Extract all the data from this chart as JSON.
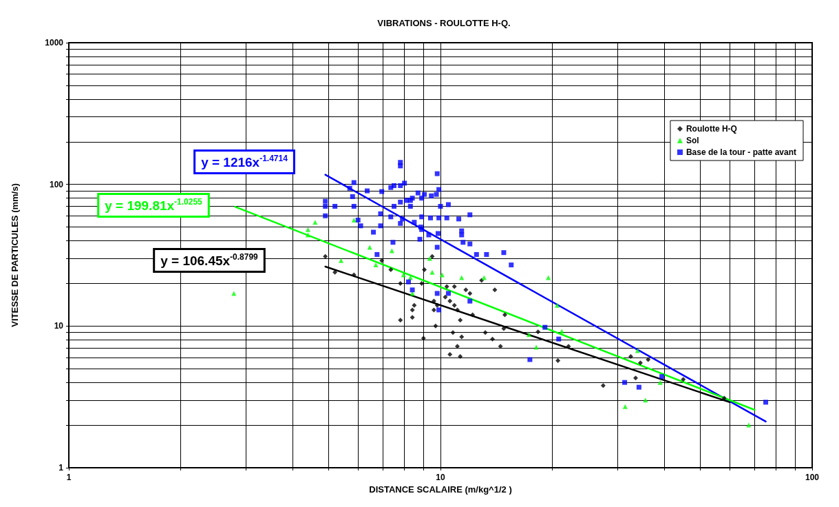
{
  "chart_data": {
    "type": "scatter",
    "title": "VIBRATIONS - ROULOTTE H-Q.",
    "xlabel": "DISTANCE SCALAIRE (m/kg^1/2 )",
    "ylabel": "VITESSE DE PARTICULES (mm/s)",
    "log": "xy",
    "grid": true,
    "legend": "top right",
    "xlim": [
      1,
      100
    ],
    "ylim": [
      1,
      1000
    ],
    "xticks": [
      1,
      {
        "value": 2,
        "label": null
      },
      {
        "value": 3,
        "label": null
      },
      {
        "value": 4,
        "label": null
      },
      {
        "value": 5,
        "label": null
      },
      {
        "value": 6,
        "label": null
      },
      {
        "value": 7,
        "label": null
      },
      {
        "value": 8,
        "label": null
      },
      {
        "value": 9,
        "label": null
      },
      10,
      {
        "value": 20,
        "label": null
      },
      {
        "value": 30,
        "label": null
      },
      {
        "value": 40,
        "label": null
      },
      {
        "value": 50,
        "label": null
      },
      {
        "value": 60,
        "label": null
      },
      {
        "value": 70,
        "label": null
      },
      {
        "value": 80,
        "label": null
      },
      {
        "value": 90,
        "label": null
      },
      100
    ],
    "yticks": [
      1,
      {
        "value": 2,
        "label": null
      },
      {
        "value": 3,
        "label": null
      },
      {
        "value": 4,
        "label": null
      },
      {
        "value": 5,
        "label": null
      },
      {
        "value": 6,
        "label": null
      },
      {
        "value": 7,
        "label": null
      },
      {
        "value": 8,
        "label": null
      },
      {
        "value": 9,
        "label": null
      },
      10,
      {
        "value": 20,
        "label": null
      },
      {
        "value": 30,
        "label": null
      },
      {
        "value": 40,
        "label": null
      },
      {
        "value": 50,
        "label": null
      },
      {
        "value": 60,
        "label": null
      },
      {
        "value": 70,
        "label": null
      },
      {
        "value": 80,
        "label": null
      },
      {
        "value": 90,
        "label": null
      },
      100,
      {
        "value": 200,
        "label": null
      },
      {
        "value": 300,
        "label": null
      },
      {
        "value": 400,
        "label": null
      },
      {
        "value": 500,
        "label": null
      },
      {
        "value": 600,
        "label": null
      },
      {
        "value": 700,
        "label": null
      },
      {
        "value": 800,
        "label": null
      },
      {
        "value": 900,
        "label": null
      },
      1000
    ],
    "series": [
      {
        "name": "Roulotte H-Q",
        "color": "#000000",
        "marker": "diamond",
        "x": [
          4.9,
          5.2,
          5.85,
          6.95,
          7.35,
          7.8,
          8.9,
          9.05,
          9.5,
          10.4,
          10.9,
          12.9,
          11.7,
          12,
          14,
          9.6,
          10.3,
          10.6,
          9.8,
          10.9,
          11.1,
          12.2,
          11.3,
          8.5,
          8.4,
          8.4,
          7.8,
          9.6,
          9.7,
          10.8,
          13.2,
          11.4,
          9,
          13.8,
          11.1,
          14.5,
          10.6,
          11.3,
          14.8,
          18.3,
          14.9,
          20.7,
          22.1,
          27.4,
          32.5,
          34.5,
          36.2,
          33.5,
          45,
          58
        ],
        "values": [
          31,
          24,
          23,
          29,
          25,
          20,
          20,
          25,
          31,
          19,
          19,
          21,
          18,
          17,
          18,
          15,
          16,
          15,
          14,
          14,
          13,
          12,
          11,
          14,
          13,
          11.5,
          11,
          13,
          10,
          9,
          9,
          8.4,
          8.2,
          8.1,
          7.2,
          7.2,
          6.3,
          6.1,
          9.6,
          9.1,
          12,
          5.7,
          7.2,
          3.8,
          6.1,
          5.5,
          5.8,
          4.3,
          4.2,
          3.1
        ]
      },
      {
        "name": "Sol",
        "color": "#00ff00",
        "marker": "triangle",
        "x": [
          2.78,
          4.4,
          4.6,
          4.4,
          5.4,
          5.85,
          6.45,
          7.4,
          6.7,
          7.95,
          8.3,
          9.35,
          9.5,
          10.1,
          11.4,
          13.1,
          19.5,
          20.6,
          21.2,
          17.3,
          18.1,
          33.9,
          39,
          31.4,
          35.6,
          67.5,
          8.4
        ],
        "values": [
          17,
          48,
          54,
          44,
          29,
          56,
          36,
          34,
          27,
          23,
          22,
          30,
          24,
          23,
          22,
          22,
          22,
          14,
          9.2,
          8.7,
          7.1,
          6.7,
          4,
          2.7,
          3,
          2,
          17
        ]
      },
      {
        "name": "Base de la tour - patte avant",
        "color": "#0000ff",
        "marker": "square",
        "x": [
          4.9,
          4.9,
          4.9,
          5.2,
          5.85,
          5.7,
          5.8,
          5.85,
          6,
          6.1,
          6.35,
          6.95,
          6.9,
          6.9,
          6.6,
          6.75,
          7.35,
          7.5,
          7.8,
          7.8,
          7.8,
          8,
          7.35,
          7.8,
          7.5,
          7.8,
          8.1,
          8.3,
          8.3,
          8.4,
          7.9,
          7.45,
          8.5,
          8.7,
          8.9,
          9.05,
          8.9,
          8.85,
          8.9,
          8.8,
          9.3,
          9.45,
          9.4,
          9.75,
          9.8,
          9.9,
          10,
          9.9,
          9.85,
          9.8,
          10.5,
          10.4,
          11.2,
          11.4,
          11.4,
          11.5,
          12,
          12,
          12.5,
          13.3,
          14.8,
          15.5,
          17.4,
          19.1,
          20.8,
          31.3,
          34.2,
          39.4,
          75,
          8.2,
          8.4,
          9.8,
          10.5,
          12,
          9.9
        ],
        "values": [
          76,
          70,
          60,
          70,
          103,
          94,
          82,
          70,
          56,
          51,
          90,
          89,
          62,
          51,
          46,
          32,
          95,
          98,
          135,
          143,
          98,
          102,
          59,
          53,
          70,
          75,
          77,
          70,
          77,
          80,
          57,
          39,
          54,
          87,
          80,
          85,
          59,
          50,
          48,
          41,
          44,
          83,
          58,
          85,
          119,
          92,
          70,
          58,
          45,
          36,
          72,
          58,
          57,
          47,
          44,
          39,
          61,
          38,
          32,
          32,
          33,
          27,
          5.8,
          9.8,
          8.1,
          4,
          3.7,
          4.4,
          2.9,
          20.5,
          18,
          17,
          17,
          15,
          13
        ]
      },
      {
        "type": "line",
        "color": "#0000ff",
        "x": [
          4.9,
          75
        ],
        "values": [
          117,
          2.12
        ]
      },
      {
        "type": "line",
        "color": "#00ff00",
        "x": [
          2.8,
          70
        ],
        "values": [
          69.5,
          2.56
        ]
      },
      {
        "type": "line",
        "color": "#000000",
        "x": [
          4.9,
          60
        ],
        "values": [
          26.3,
          2.9
        ]
      }
    ],
    "annotations": [
      "y = 1216x$^{-1.4714}$",
      "y = 199.81x$^{-1.0255}$",
      "y = 106.45x$^{-0.8799}$"
    ]
  }
}
